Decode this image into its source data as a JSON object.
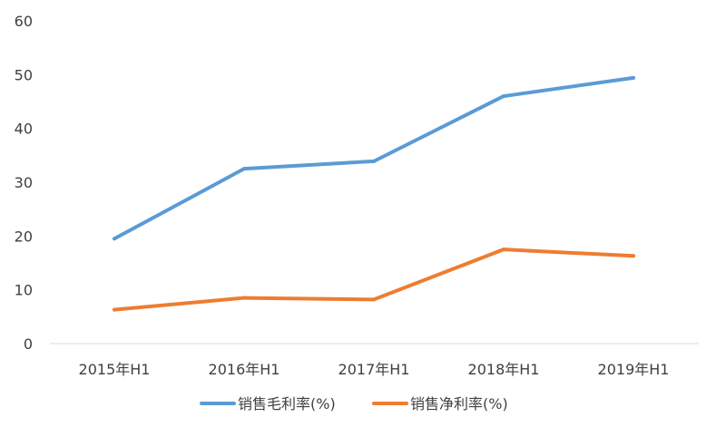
{
  "chart_data": {
    "type": "line",
    "categories": [
      "2015年H1",
      "2016年H1",
      "2017年H1",
      "2018年H1",
      "2019年H1"
    ],
    "ylim": [
      0,
      60
    ],
    "yticks": [
      0,
      10,
      20,
      30,
      40,
      50,
      60
    ],
    "grid": false,
    "legend_position": "bottom",
    "series": [
      {
        "name": "销售毛利率(%)",
        "color": "#5B9BD5",
        "values": [
          19.5,
          32.5,
          33.9,
          46.0,
          49.4
        ]
      },
      {
        "name": "销售净利率(%)",
        "color": "#ED7D31",
        "values": [
          6.3,
          8.5,
          8.2,
          17.5,
          16.3
        ]
      }
    ]
  }
}
